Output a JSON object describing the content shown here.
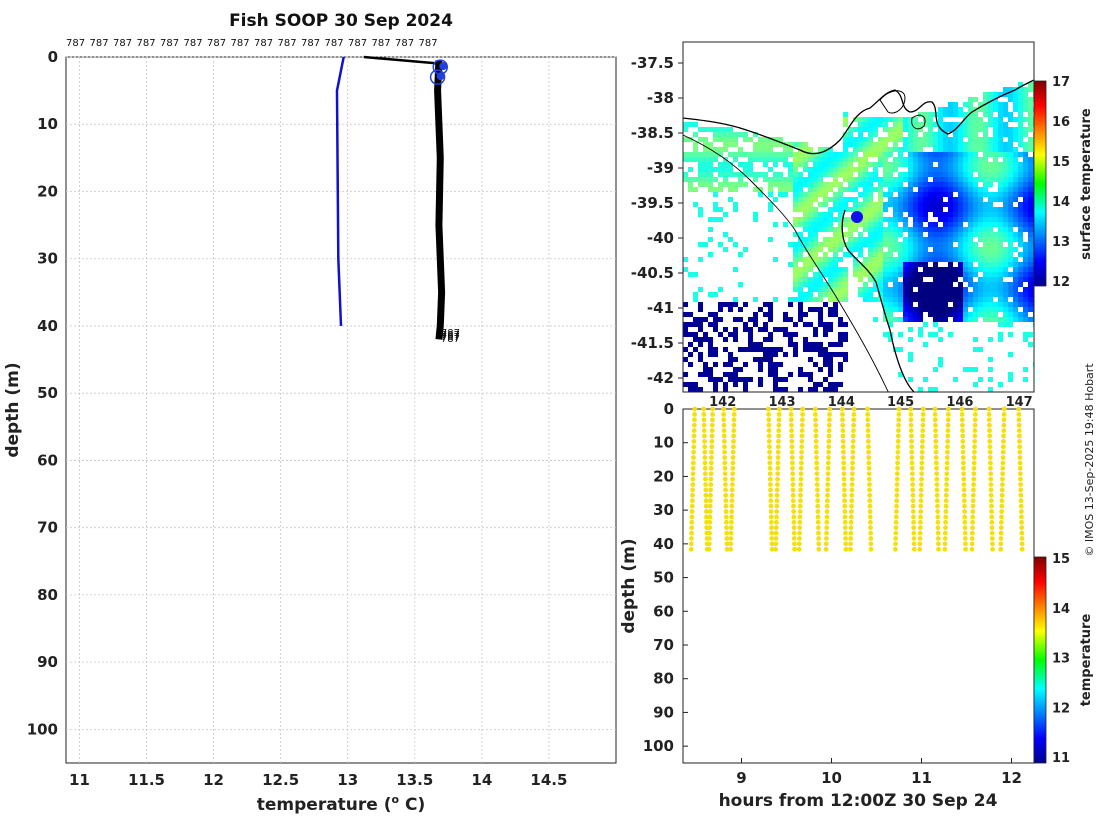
{
  "title": "Fish SOOP 30 Sep 2024",
  "credit": "© IMOS 13-Sep-2025 19:48 Hobart",
  "profile_ids": [
    "787",
    "787",
    "787",
    "787",
    "787",
    "787",
    "787",
    "787",
    "787",
    "787",
    "787",
    "787",
    "787",
    "787",
    "787",
    "787"
  ],
  "chart_data": [
    {
      "type": "line",
      "panel": "temperature-depth profile",
      "xlabel": "temperature (o C)",
      "ylabel": "depth (m)",
      "xlim": [
        10.9,
        15.0
      ],
      "ylim": [
        105,
        0
      ],
      "y_reversed": true,
      "xticks": [
        11,
        11.5,
        12,
        12.5,
        13,
        13.5,
        14,
        14.5
      ],
      "xtick_labels": [
        "11",
        "11.5",
        "12",
        "12.5",
        "13",
        "13.5",
        "14",
        "14.5"
      ],
      "yticks": [
        0,
        10,
        20,
        30,
        40,
        50,
        60,
        70,
        80,
        90,
        100
      ],
      "grid": true,
      "series": [
        {
          "color": "#1010d0",
          "x": [
            12.97,
            12.92,
            12.93,
            12.95
          ],
          "y": [
            0,
            5,
            30,
            40
          ]
        },
        {
          "color": "#000000",
          "x": [
            13.68,
            13.67,
            13.69,
            13.68,
            13.7,
            13.69,
            13.68
          ],
          "y": [
            0.5,
            5,
            15,
            25,
            35,
            40,
            42
          ]
        },
        {
          "color": "#000000",
          "x": [
            13.12,
            13.7,
            13.69
          ],
          "y": [
            0,
            1,
            3
          ]
        }
      ],
      "markers": [
        {
          "color": "#2040e0",
          "x": 13.69,
          "y": 1.5
        },
        {
          "color": "#2040e0",
          "x": 13.67,
          "y": 3.0
        }
      ],
      "annotations": [
        "787",
        "787",
        "787",
        "787"
      ]
    },
    {
      "type": "heatmap",
      "panel": "surface temperature map",
      "xticks": [
        142,
        143,
        144,
        145,
        146,
        147
      ],
      "xtick_labels": [
        "142",
        "143",
        "144",
        "145",
        "146",
        "147"
      ],
      "yticks": [
        -37.5,
        -38,
        -38.5,
        -39,
        -39.5,
        -40,
        -40.5,
        -41,
        -41.5,
        -42
      ],
      "ytick_labels": [
        "-37.5",
        "-38",
        "-38.5",
        "-39",
        "-39.5",
        "-40",
        "-40.5",
        "-41",
        "-41.5",
        "-42"
      ],
      "colorbar_label": "surface temperature",
      "colorbar_range": [
        12,
        17
      ],
      "colorbar_ticks": [
        "12",
        "13",
        "14",
        "15",
        "16",
        "17"
      ],
      "vessel_position": {
        "lon": 144.2,
        "lat": -39.6
      }
    },
    {
      "type": "scatter",
      "panel": "depth-time section",
      "xlabel": "hours from 12:00Z 30 Sep 24",
      "ylabel": "depth (m)",
      "xlim": [
        8.35,
        12.25
      ],
      "ylim": [
        105,
        0
      ],
      "xticks": [
        9,
        10,
        11,
        12
      ],
      "yticks": [
        0,
        10,
        20,
        30,
        40,
        50,
        60,
        70,
        80,
        90,
        100
      ],
      "colorbar_label": "temperature",
      "colorbar_range": [
        11,
        15
      ],
      "colorbar_ticks": [
        "11",
        "12",
        "13",
        "14",
        "15"
      ],
      "point_color": "#f3e010",
      "profile_times": [
        8.48,
        8.58,
        8.68,
        8.8,
        8.92,
        9.3,
        9.42,
        9.55,
        9.68,
        9.82,
        9.98,
        10.12,
        10.25,
        10.4,
        10.75,
        10.88,
        11.02,
        11.15,
        11.3,
        11.45,
        11.6,
        11.75,
        11.92,
        12.08
      ],
      "max_depth": 42
    }
  ]
}
